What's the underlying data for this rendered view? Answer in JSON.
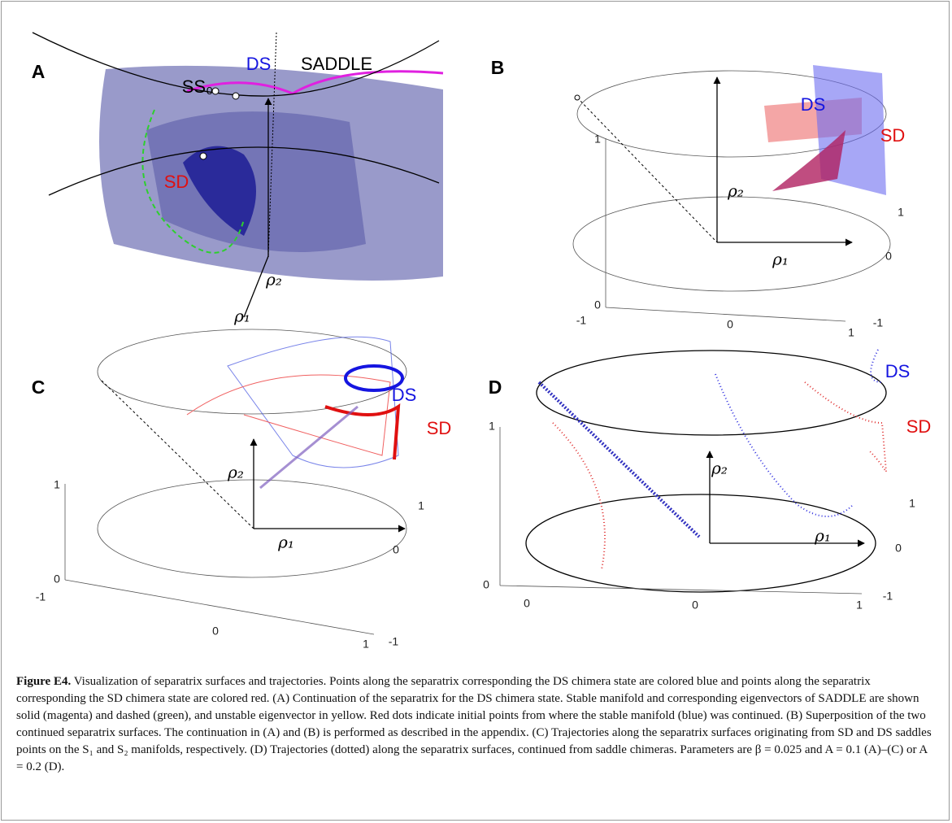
{
  "panels": [
    {
      "label": "A",
      "annotations": {
        "ss0": "SS₀",
        "ds": "DS",
        "saddle": "SADDLE",
        "sd": "SD",
        "rho2": "ρ₂",
        "rho1": "ρ₁"
      }
    },
    {
      "label": "B",
      "annotations": {
        "ds": "DS",
        "sd": "SD",
        "rho2": "ρ₂",
        "rho1": "ρ₁"
      },
      "ticks": [
        "1",
        "0",
        "-1",
        "0",
        "1",
        "-1",
        "0",
        "1"
      ]
    },
    {
      "label": "C",
      "annotations": {
        "ds": "DS",
        "sd": "SD",
        "rho2": "ρ₂",
        "rho1": "ρ₁"
      },
      "ticks": [
        "1",
        "0",
        "-1",
        "0",
        "1",
        "-1",
        "0",
        "1"
      ]
    },
    {
      "label": "D",
      "annotations": {
        "ds": "DS",
        "sd": "SD",
        "rho2": "ρ₂",
        "rho1": "ρ₁"
      },
      "ticks": [
        "1",
        "0",
        "0",
        "0",
        "1",
        "-1",
        "0",
        "1"
      ]
    }
  ],
  "caption": {
    "label": "Figure E4.",
    "text": "Visualization of separatrix surfaces and trajectories. Points along the separatrix corresponding the DS chimera state are colored blue and points along the separatrix corresponding the SD chimera state are colored red. (A) Continuation of the separatrix for the DS chimera state. Stable manifold and corresponding eigenvectors of SADDLE are shown solid (magenta) and dashed (green), and unstable eigenvector in yellow. Red dots indicate initial points from where the stable manifold (blue) was continued. (B) Superposition of the two continued separatrix surfaces. The continuation in (A) and (B) is performed as described in the appendix. (C) Trajectories along the separatrix surfaces originating from SD and DS saddles points on the S₁ and S₂ manifolds, respectively. (D) Trajectories (dotted) along the separatrix surfaces, continued from saddle chimeras. Parameters are β = 0.025 and A = 0.1 (A)–(C) or A = 0.2 (D)."
  }
}
